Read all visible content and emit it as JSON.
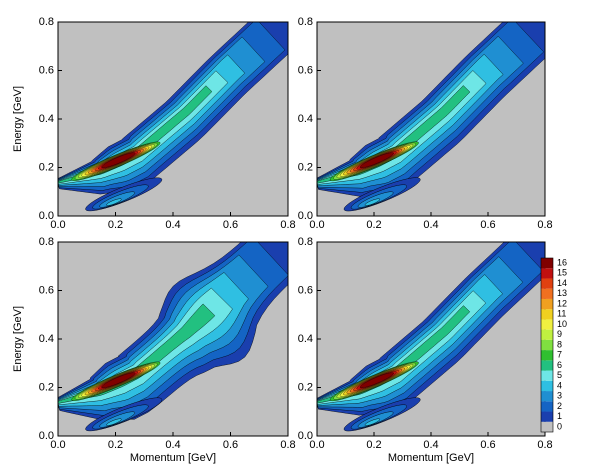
{
  "chart_data": [
    {
      "type": "contour",
      "xlim": [
        0,
        0.8
      ],
      "ylim": [
        0,
        0.8
      ],
      "xticks": [
        {
          "value": 0,
          "label": "0.0"
        },
        0.2,
        0.4,
        0.6,
        0.8
      ],
      "yticks": [
        {
          "value": 0,
          "label": "0.0"
        },
        0.2,
        0.4,
        0.6,
        0.8
      ],
      "ylabel": "Energy [GeV]"
    },
    {
      "type": "contour",
      "xlim": [
        0,
        0.8
      ],
      "ylim": [
        0,
        0.8
      ],
      "xticks": [
        {
          "value": 0,
          "label": "0.0"
        },
        0.2,
        0.4,
        0.6,
        0.8
      ],
      "yticks": [
        {
          "value": 0,
          "label": "0.0"
        },
        0.2,
        0.4,
        0.6,
        0.8
      ]
    },
    {
      "type": "contour",
      "xlim": [
        0,
        0.8
      ],
      "ylim": [
        0,
        0.8
      ],
      "xticks": [
        {
          "value": 0,
          "label": "0.0"
        },
        0.2,
        0.4,
        0.6,
        0.8
      ],
      "yticks": [
        {
          "value": 0,
          "label": "0.0"
        },
        0.2,
        0.4,
        0.6,
        0.8
      ],
      "xlabel": "Momentum [GeV]",
      "ylabel": "Energy [GeV]"
    },
    {
      "type": "contour",
      "xlim": [
        0,
        0.8
      ],
      "ylim": [
        0,
        0.8
      ],
      "xticks": [
        {
          "value": 0,
          "label": "0.0"
        },
        0.2,
        0.4,
        0.6,
        0.8
      ],
      "yticks": [
        {
          "value": 0,
          "label": "0.0"
        },
        0.2,
        0.4,
        0.6,
        0.8
      ],
      "xlabel": "Momentum [GeV]"
    }
  ],
  "colorbar": {
    "levels": [
      0,
      1,
      2,
      3,
      4,
      5,
      6,
      7,
      8,
      9,
      10,
      11,
      12,
      13,
      14,
      15,
      16
    ],
    "colors": [
      "#c0c0c0",
      "#1a3fae",
      "#1464c4",
      "#1f8fd2",
      "#2fbfe2",
      "#6ee6e6",
      "#22c080",
      "#30c030",
      "#80e040",
      "#c0f040",
      "#f0f040",
      "#f0d020",
      "#f0a020",
      "#f07020",
      "#e04010",
      "#c01010",
      "#800000"
    ]
  }
}
